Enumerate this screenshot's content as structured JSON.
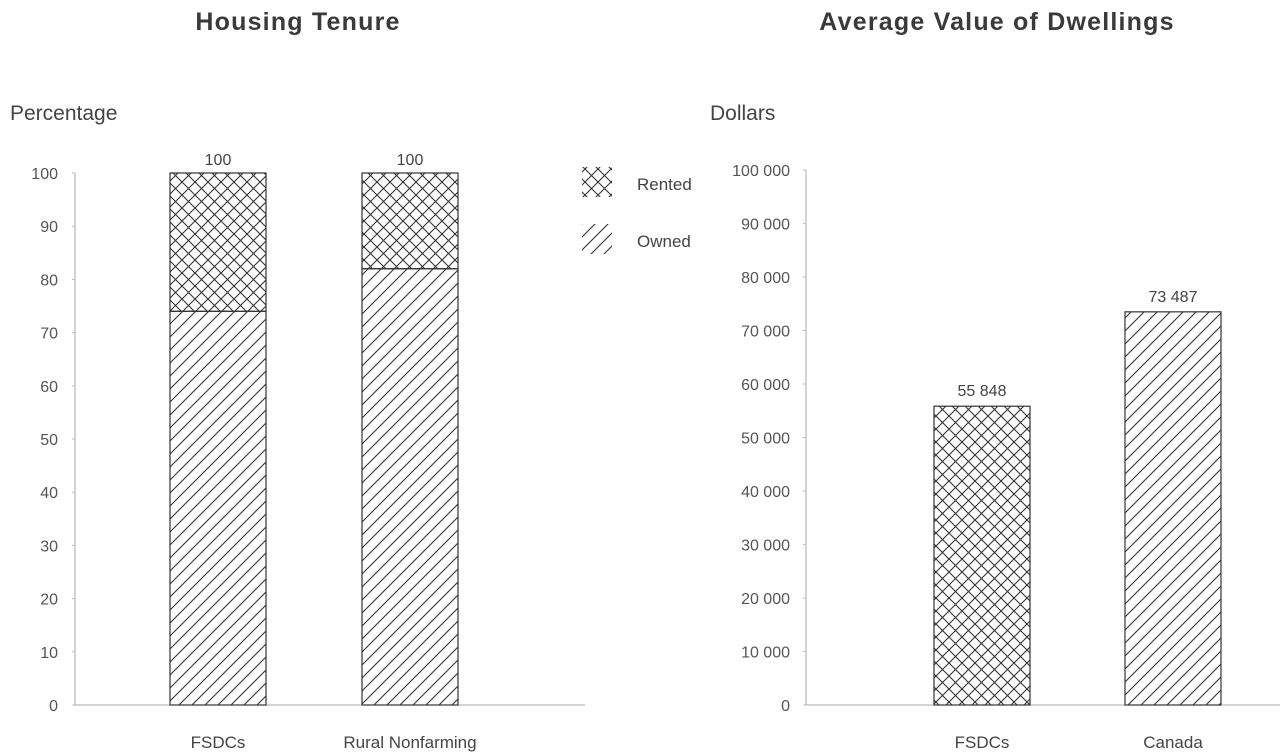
{
  "chart_data": [
    {
      "type": "bar",
      "stacked": true,
      "title": "Housing Tenure",
      "ylabel": "Percentage",
      "xlabel": "",
      "ylim": [
        0,
        100
      ],
      "yticks": [
        "0",
        "10",
        "20",
        "30",
        "40",
        "50",
        "60",
        "70",
        "80",
        "90",
        "100"
      ],
      "categories": [
        "FSDCs",
        "Rural Nonfarming"
      ],
      "series": [
        {
          "name": "Owned",
          "values": [
            74,
            82
          ],
          "pattern": "hatch"
        },
        {
          "name": "Rented",
          "values": [
            26,
            18
          ],
          "pattern": "crosshatch"
        }
      ],
      "totals": [
        "100",
        "100"
      ],
      "legend": {
        "position": "right",
        "entries": [
          "Rented",
          "Owned"
        ]
      },
      "grid": false
    },
    {
      "type": "bar",
      "title": "Average Value of Dwellings",
      "ylabel": "Dollars",
      "xlabel": "",
      "ylim": [
        0,
        100000
      ],
      "yticks": [
        "0",
        "10 000",
        "20 000",
        "30 000",
        "40 000",
        "50 000",
        "60 000",
        "70 000",
        "80 000",
        "90 000",
        "100 000"
      ],
      "categories": [
        "FSDCs",
        "Canada"
      ],
      "values": [
        55848,
        73487
      ],
      "value_labels": [
        "55 848",
        "73 487"
      ],
      "patterns": [
        "crosshatch",
        "hatch"
      ],
      "grid": false
    }
  ]
}
